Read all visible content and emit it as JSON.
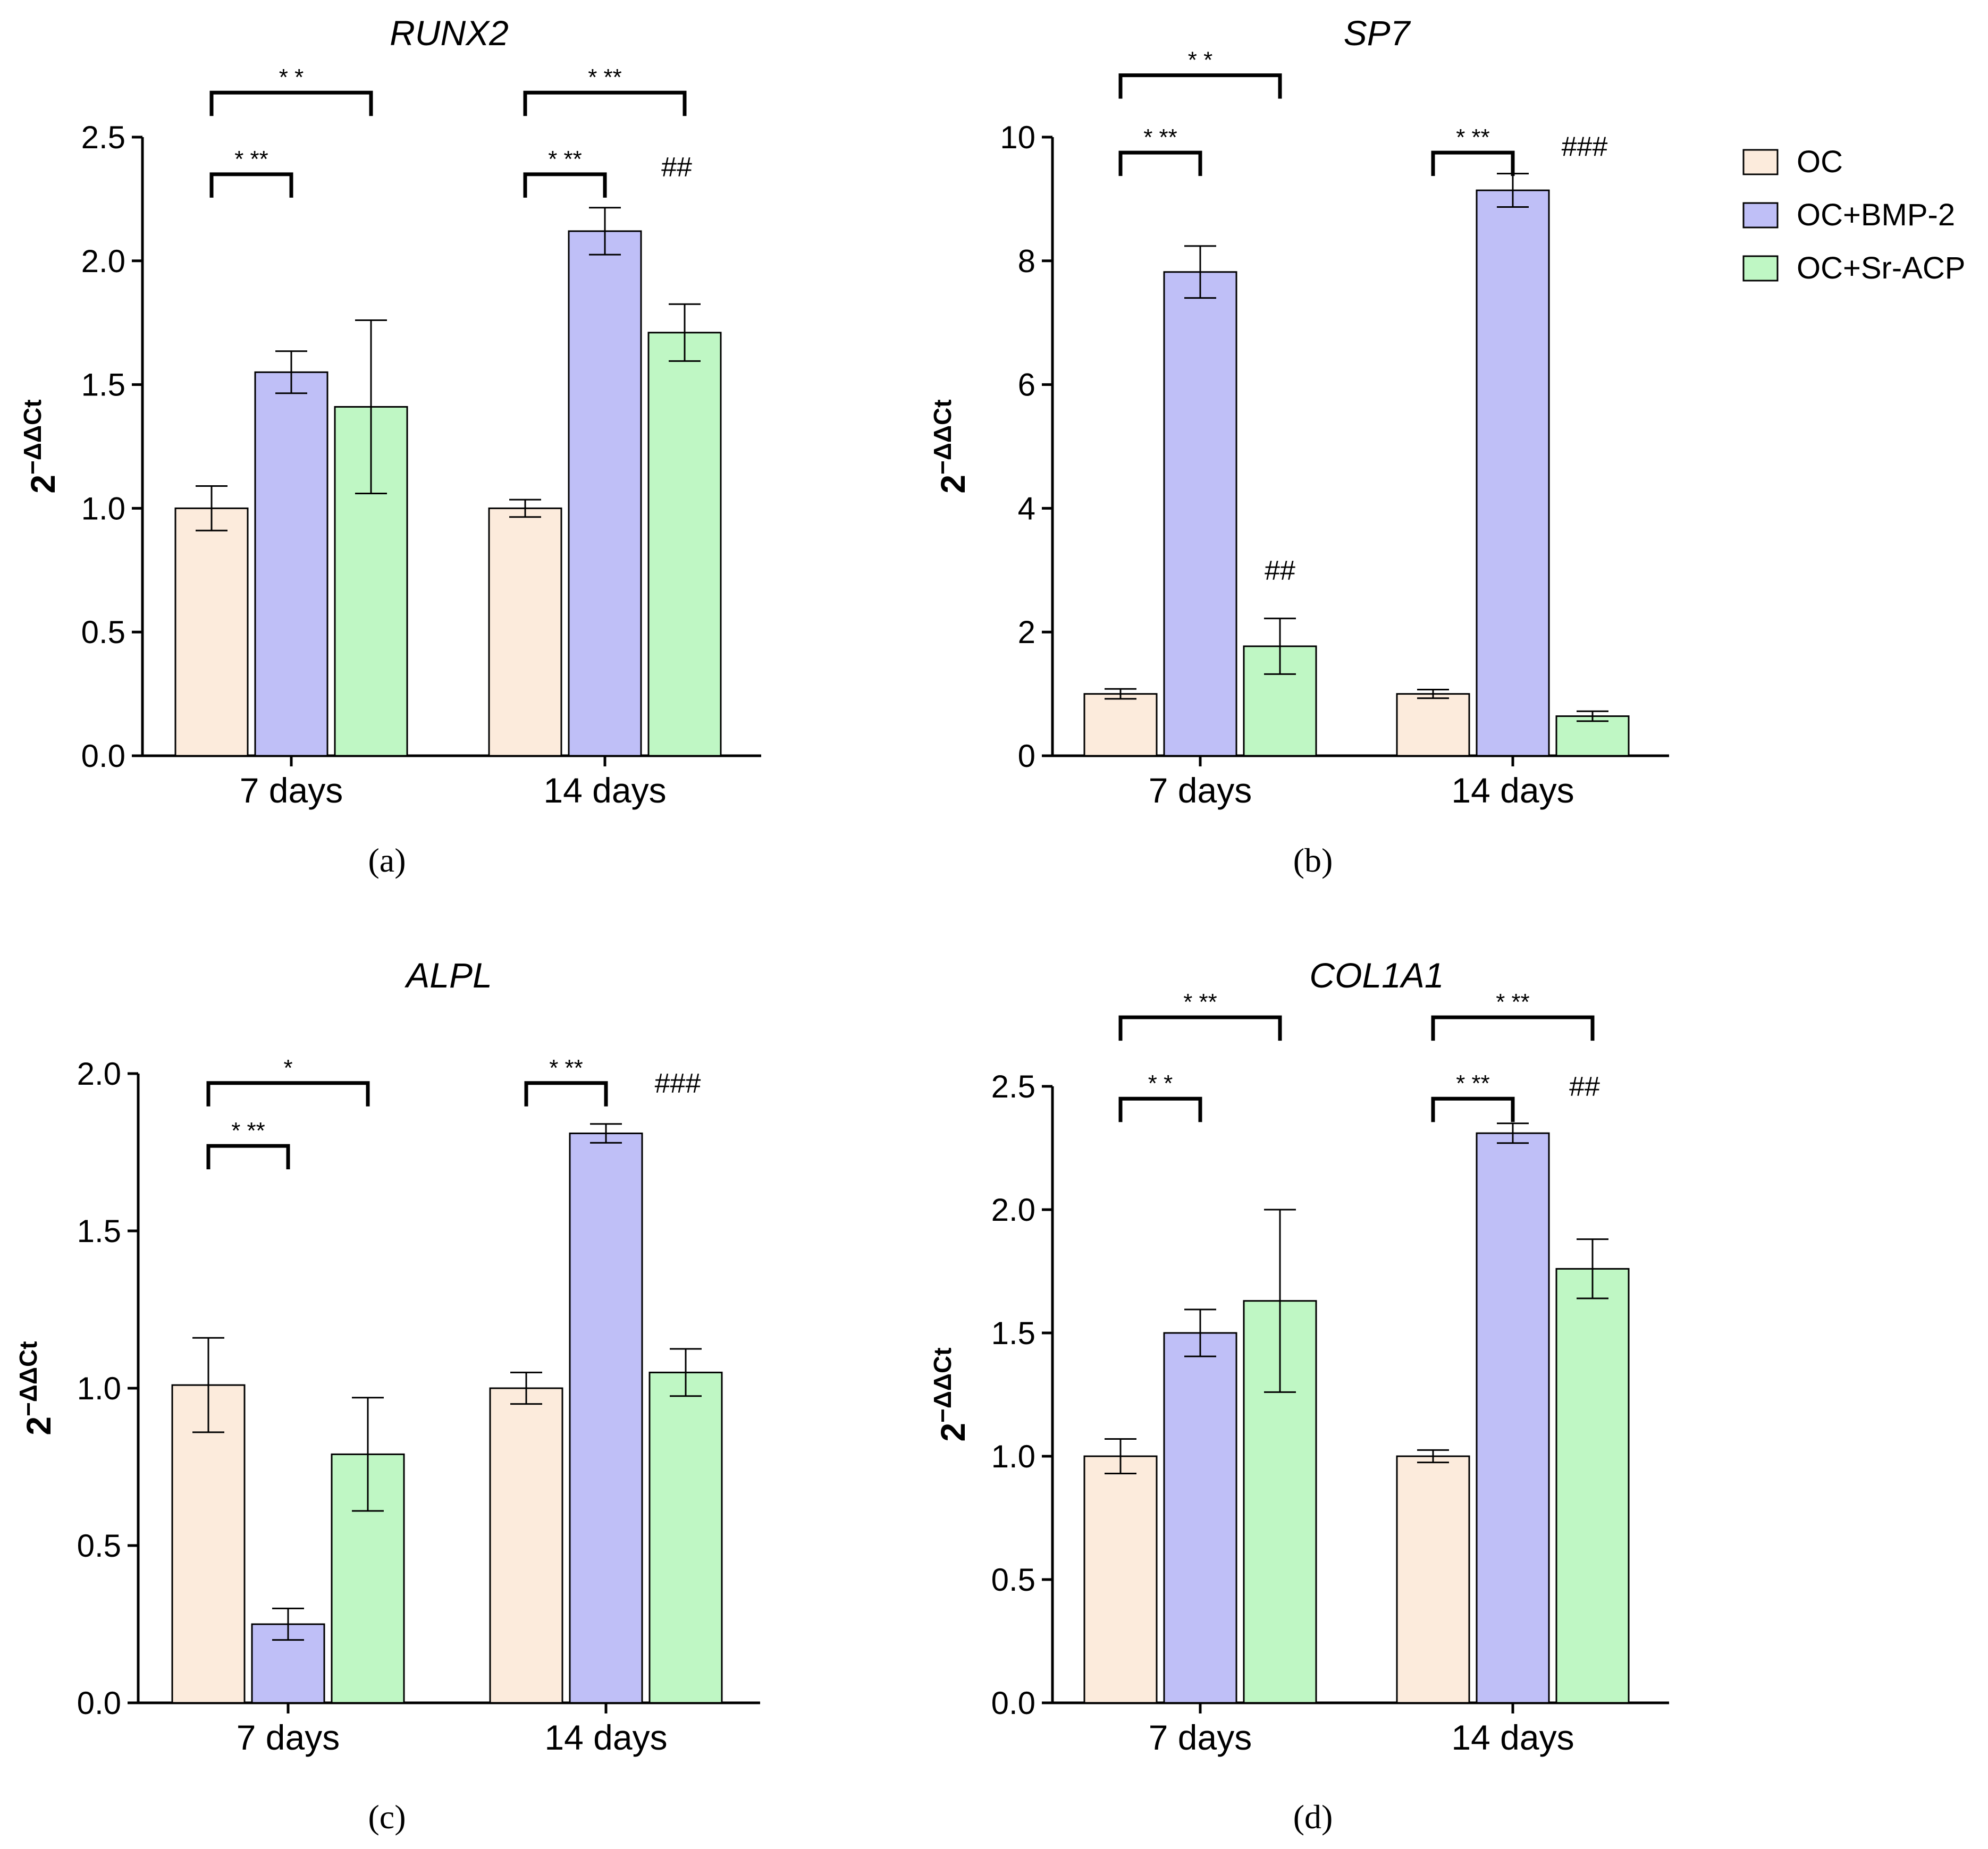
{
  "legend": [
    {
      "label": "OC",
      "color": "#fcebdc"
    },
    {
      "label": "OC+BMP-2",
      "color": "#bfbff7"
    },
    {
      "label": "OC+Sr-ACP",
      "color": "#bff7c4"
    }
  ],
  "chart_data": [
    {
      "type": "bar",
      "panel": "(a)",
      "title": "RUNX2",
      "ylabel_base": "2",
      "ylabel_sup": "−ΔΔCt",
      "categories": [
        "7 days",
        "14 days"
      ],
      "ylim": [
        0,
        2.5
      ],
      "yticks": [
        "0.0",
        "0.5",
        "1.0",
        "1.5",
        "2.0",
        "2.5"
      ],
      "series": [
        {
          "name": "OC",
          "values": [
            1.0,
            1.0
          ],
          "errors": [
            0.09,
            0.035
          ]
        },
        {
          "name": "OC+BMP-2",
          "values": [
            1.55,
            2.12
          ],
          "errors": [
            0.085,
            0.095
          ]
        },
        {
          "name": "OC+Sr-ACP",
          "values": [
            1.41,
            1.71
          ],
          "errors": [
            0.35,
            0.115
          ]
        }
      ],
      "brackets": [
        {
          "group": 0,
          "from": 0,
          "to": 1,
          "label": "* **",
          "y": 2.35
        },
        {
          "group": 0,
          "from": 0,
          "to": 2,
          "label": "* *",
          "y": 2.68
        },
        {
          "group": 1,
          "from": 0,
          "to": 1,
          "label": "* **",
          "y": 2.35
        },
        {
          "group": 1,
          "from": 0,
          "to": 2,
          "label": "* **",
          "y": 2.68
        }
      ],
      "hashes": [
        {
          "group": 1,
          "series": 1,
          "label": "##",
          "y": 2.38
        }
      ]
    },
    {
      "type": "bar",
      "panel": "(b)",
      "title": "SP7",
      "ylabel_base": "2",
      "ylabel_sup": "−ΔΔCt",
      "categories": [
        "7 days",
        "14 days"
      ],
      "ylim": [
        0,
        10
      ],
      "yticks": [
        "0",
        "2",
        "4",
        "6",
        "8",
        "10"
      ],
      "series": [
        {
          "name": "OC",
          "values": [
            1.0,
            1.0
          ],
          "errors": [
            0.08,
            0.07
          ]
        },
        {
          "name": "OC+BMP-2",
          "values": [
            7.82,
            9.14
          ],
          "errors": [
            0.42,
            0.27
          ]
        },
        {
          "name": "OC+Sr-ACP",
          "values": [
            1.77,
            0.64
          ],
          "errors": [
            0.45,
            0.08
          ]
        }
      ],
      "brackets": [
        {
          "group": 0,
          "from": 0,
          "to": 1,
          "label": "* **",
          "y": 9.75
        },
        {
          "group": 0,
          "from": 0,
          "to": 2,
          "label": "* *",
          "y": 11.0
        },
        {
          "group": 1,
          "from": 0,
          "to": 1,
          "label": "* **",
          "y": 9.75
        }
      ],
      "hashes": [
        {
          "group": 0,
          "series": 2,
          "label": "##",
          "y": 3.0
        },
        {
          "group": 1,
          "series": 1,
          "label": "###",
          "y": 9.85
        }
      ]
    },
    {
      "type": "bar",
      "panel": "(c)",
      "title": "ALPL",
      "ylabel_base": "2",
      "ylabel_sup": "−ΔΔCt",
      "categories": [
        "7 days",
        "14 days"
      ],
      "ylim": [
        0,
        2.0
      ],
      "yticks": [
        "0.0",
        "0.5",
        "1.0",
        "1.5",
        "2.0"
      ],
      "series": [
        {
          "name": "OC",
          "values": [
            1.01,
            1.0
          ],
          "errors": [
            0.15,
            0.05
          ]
        },
        {
          "name": "OC+BMP-2",
          "values": [
            0.25,
            1.81
          ],
          "errors": [
            0.05,
            0.03
          ]
        },
        {
          "name": "OC+Sr-ACP",
          "values": [
            0.79,
            1.05
          ],
          "errors": [
            0.18,
            0.075
          ]
        }
      ],
      "brackets": [
        {
          "group": 0,
          "from": 0,
          "to": 1,
          "label": "* **",
          "y": 1.77
        },
        {
          "group": 0,
          "from": 0,
          "to": 2,
          "label": "*",
          "y": 1.97
        },
        {
          "group": 1,
          "from": 0,
          "to": 1,
          "label": "* **",
          "y": 1.97
        }
      ],
      "hashes": [
        {
          "group": 1,
          "series": 1,
          "label": "###",
          "y": 1.97
        }
      ]
    },
    {
      "type": "bar",
      "panel": "(d)",
      "title": "COL1A1",
      "ylabel_base": "2",
      "ylabel_sup": "−ΔΔCt",
      "categories": [
        "7 days",
        "14 days"
      ],
      "ylim": [
        0,
        2.5
      ],
      "yticks": [
        "0.0",
        "0.5",
        "1.0",
        "1.5",
        "2.0",
        "2.5"
      ],
      "series": [
        {
          "name": "OC",
          "values": [
            1.0,
            1.0
          ],
          "errors": [
            0.07,
            0.025
          ]
        },
        {
          "name": "OC+BMP-2",
          "values": [
            1.5,
            2.31
          ],
          "errors": [
            0.095,
            0.04
          ]
        },
        {
          "name": "OC+Sr-ACP",
          "values": [
            1.63,
            1.76
          ],
          "errors": [
            0.37,
            0.12
          ]
        }
      ],
      "brackets": [
        {
          "group": 0,
          "from": 0,
          "to": 1,
          "label": "* *",
          "y": 2.45
        },
        {
          "group": 0,
          "from": 0,
          "to": 2,
          "label": "* **",
          "y": 2.78
        },
        {
          "group": 1,
          "from": 0,
          "to": 1,
          "label": "* **",
          "y": 2.45
        },
        {
          "group": 1,
          "from": 0,
          "to": 2,
          "label": "* **",
          "y": 2.78
        }
      ],
      "hashes": [
        {
          "group": 1,
          "series": 1,
          "label": "##",
          "y": 2.5
        }
      ]
    }
  ]
}
